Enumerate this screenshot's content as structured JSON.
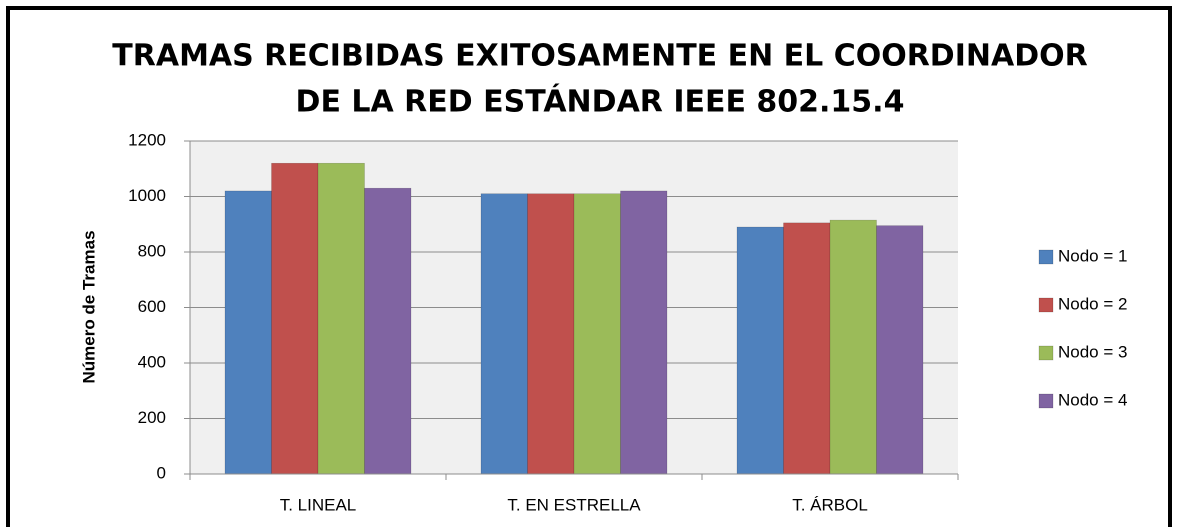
{
  "chart_data": {
    "type": "bar",
    "title": [
      "TRAMAS RECIBIDAS EXITOSAMENTE EN EL  COORDINADOR",
      "DE LA RED ESTÁNDAR IEEE 802.15.4"
    ],
    "ylabel": "Número de Tramas",
    "categories": [
      "T. LINEAL",
      "T. EN ESTRELLA",
      "T. ÁRBOL"
    ],
    "series": [
      {
        "name": "Nodo = 1",
        "color": "#4f81bd",
        "values": [
          1020,
          1010,
          890
        ]
      },
      {
        "name": "Nodo = 2",
        "color": "#c0504d",
        "values": [
          1120,
          1010,
          905
        ]
      },
      {
        "name": "Nodo = 3",
        "color": "#9bbb59",
        "values": [
          1120,
          1010,
          915
        ]
      },
      {
        "name": "Nodo = 4",
        "color": "#8064a2",
        "values": [
          1030,
          1020,
          895
        ]
      }
    ],
    "ylim": [
      0,
      1200
    ],
    "yticks": [
      0,
      200,
      400,
      600,
      800,
      1000,
      1200
    ],
    "grid": true,
    "legend": "right"
  }
}
